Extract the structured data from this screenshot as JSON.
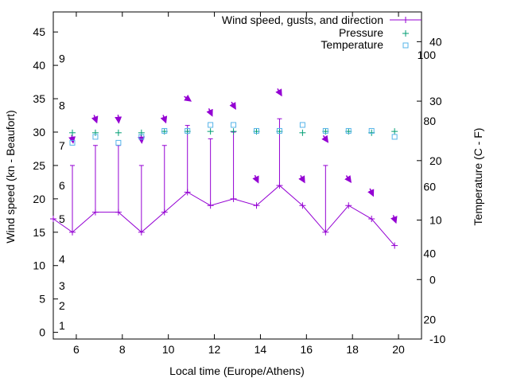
{
  "chart_data": {
    "type": "line",
    "xlabel": "Local time (Europe/Athens)",
    "ylabel_left": "Wind speed (kn - Beaufort)",
    "ylabel_right": "Temperature (C - F)",
    "xlim": [
      5,
      21
    ],
    "ylim_left": [
      -1,
      48
    ],
    "ylim_right": [
      -10,
      45
    ],
    "x_ticks": [
      6,
      8,
      10,
      12,
      14,
      16,
      18,
      20
    ],
    "y_left_ticks": [
      0,
      5,
      10,
      15,
      20,
      25,
      30,
      35,
      40,
      45
    ],
    "y_right_ticks": [
      -10,
      0,
      10,
      20,
      30,
      40
    ],
    "beaufort_labels": [
      {
        "label": "1",
        "knots": 1
      },
      {
        "label": "2",
        "knots": 4
      },
      {
        "label": "3",
        "knots": 7
      },
      {
        "label": "4",
        "knots": 11
      },
      {
        "label": "5",
        "knots": 17
      },
      {
        "label": "6",
        "knots": 22
      },
      {
        "label": "7",
        "knots": 28
      },
      {
        "label": "8",
        "knots": 34
      },
      {
        "label": "9",
        "knots": 41
      }
    ],
    "fahrenheit_labels": [
      {
        "label": "20",
        "celsius": -6.7
      },
      {
        "label": "40",
        "celsius": 4.4
      },
      {
        "label": "60",
        "celsius": 15.6
      },
      {
        "label": "80",
        "celsius": 26.7
      },
      {
        "label": "100",
        "celsius": 37.8
      }
    ],
    "legend_position": "top-right",
    "series": [
      {
        "name": "Wind speed, gusts, and direction",
        "color": "#9400d3",
        "x": [
          5,
          5.83,
          6.83,
          7.83,
          8.83,
          9.83,
          10.83,
          11.83,
          12.83,
          13.83,
          14.83,
          15.83,
          16.83,
          17.83,
          18.83,
          19.83
        ],
        "wind_speed": [
          17,
          15,
          18,
          18,
          15,
          18,
          21,
          19,
          20,
          19,
          22,
          19,
          15,
          19,
          17,
          13
        ],
        "gusts": [
          null,
          25,
          28,
          28,
          25,
          28,
          31,
          29,
          30,
          null,
          32,
          null,
          25,
          null,
          null,
          null
        ],
        "arrows": [
          {
            "x": 5.83,
            "y": 29,
            "angle": 80
          },
          {
            "x": 6.83,
            "y": 32,
            "angle": 70
          },
          {
            "x": 7.83,
            "y": 32,
            "angle": 85
          },
          {
            "x": 8.83,
            "y": 29,
            "angle": 85
          },
          {
            "x": 9.83,
            "y": 32,
            "angle": 70
          },
          {
            "x": 10.83,
            "y": 35,
            "angle": 35
          },
          {
            "x": 11.83,
            "y": 33,
            "angle": 65
          },
          {
            "x": 12.83,
            "y": 34,
            "angle": 60
          },
          {
            "x": 13.83,
            "y": 23,
            "angle": 65
          },
          {
            "x": 14.83,
            "y": 36,
            "angle": 60
          },
          {
            "x": 15.83,
            "y": 23,
            "angle": 60
          },
          {
            "x": 16.83,
            "y": 29,
            "angle": 55
          },
          {
            "x": 17.83,
            "y": 23,
            "angle": 55
          },
          {
            "x": 18.83,
            "y": 21,
            "angle": 65
          },
          {
            "x": 19.83,
            "y": 17,
            "angle": 70
          }
        ]
      },
      {
        "name": "Pressure",
        "color": "#009e73",
        "marker": "+",
        "x": [
          5.83,
          6.83,
          7.83,
          8.83,
          9.83,
          10.83,
          11.83,
          12.83,
          13.83,
          14.83,
          15.83,
          16.83,
          17.83,
          18.83,
          19.83
        ],
        "values": [
          29.9,
          29.9,
          29.9,
          29.9,
          30.1,
          30.1,
          30.1,
          30.1,
          30.1,
          30.1,
          29.9,
          30.1,
          30.1,
          29.9,
          30.1
        ]
      },
      {
        "name": "Temperature",
        "color": "#56b4e9",
        "marker": "square",
        "x": [
          5.83,
          6.83,
          7.83,
          8.83,
          9.83,
          10.83,
          11.83,
          12.83,
          13.83,
          14.83,
          15.83,
          16.83,
          17.83,
          18.83,
          19.83
        ],
        "values": [
          23,
          24,
          23,
          24,
          25,
          25,
          26,
          26,
          25,
          25,
          26,
          25,
          25,
          25,
          24
        ]
      }
    ]
  }
}
